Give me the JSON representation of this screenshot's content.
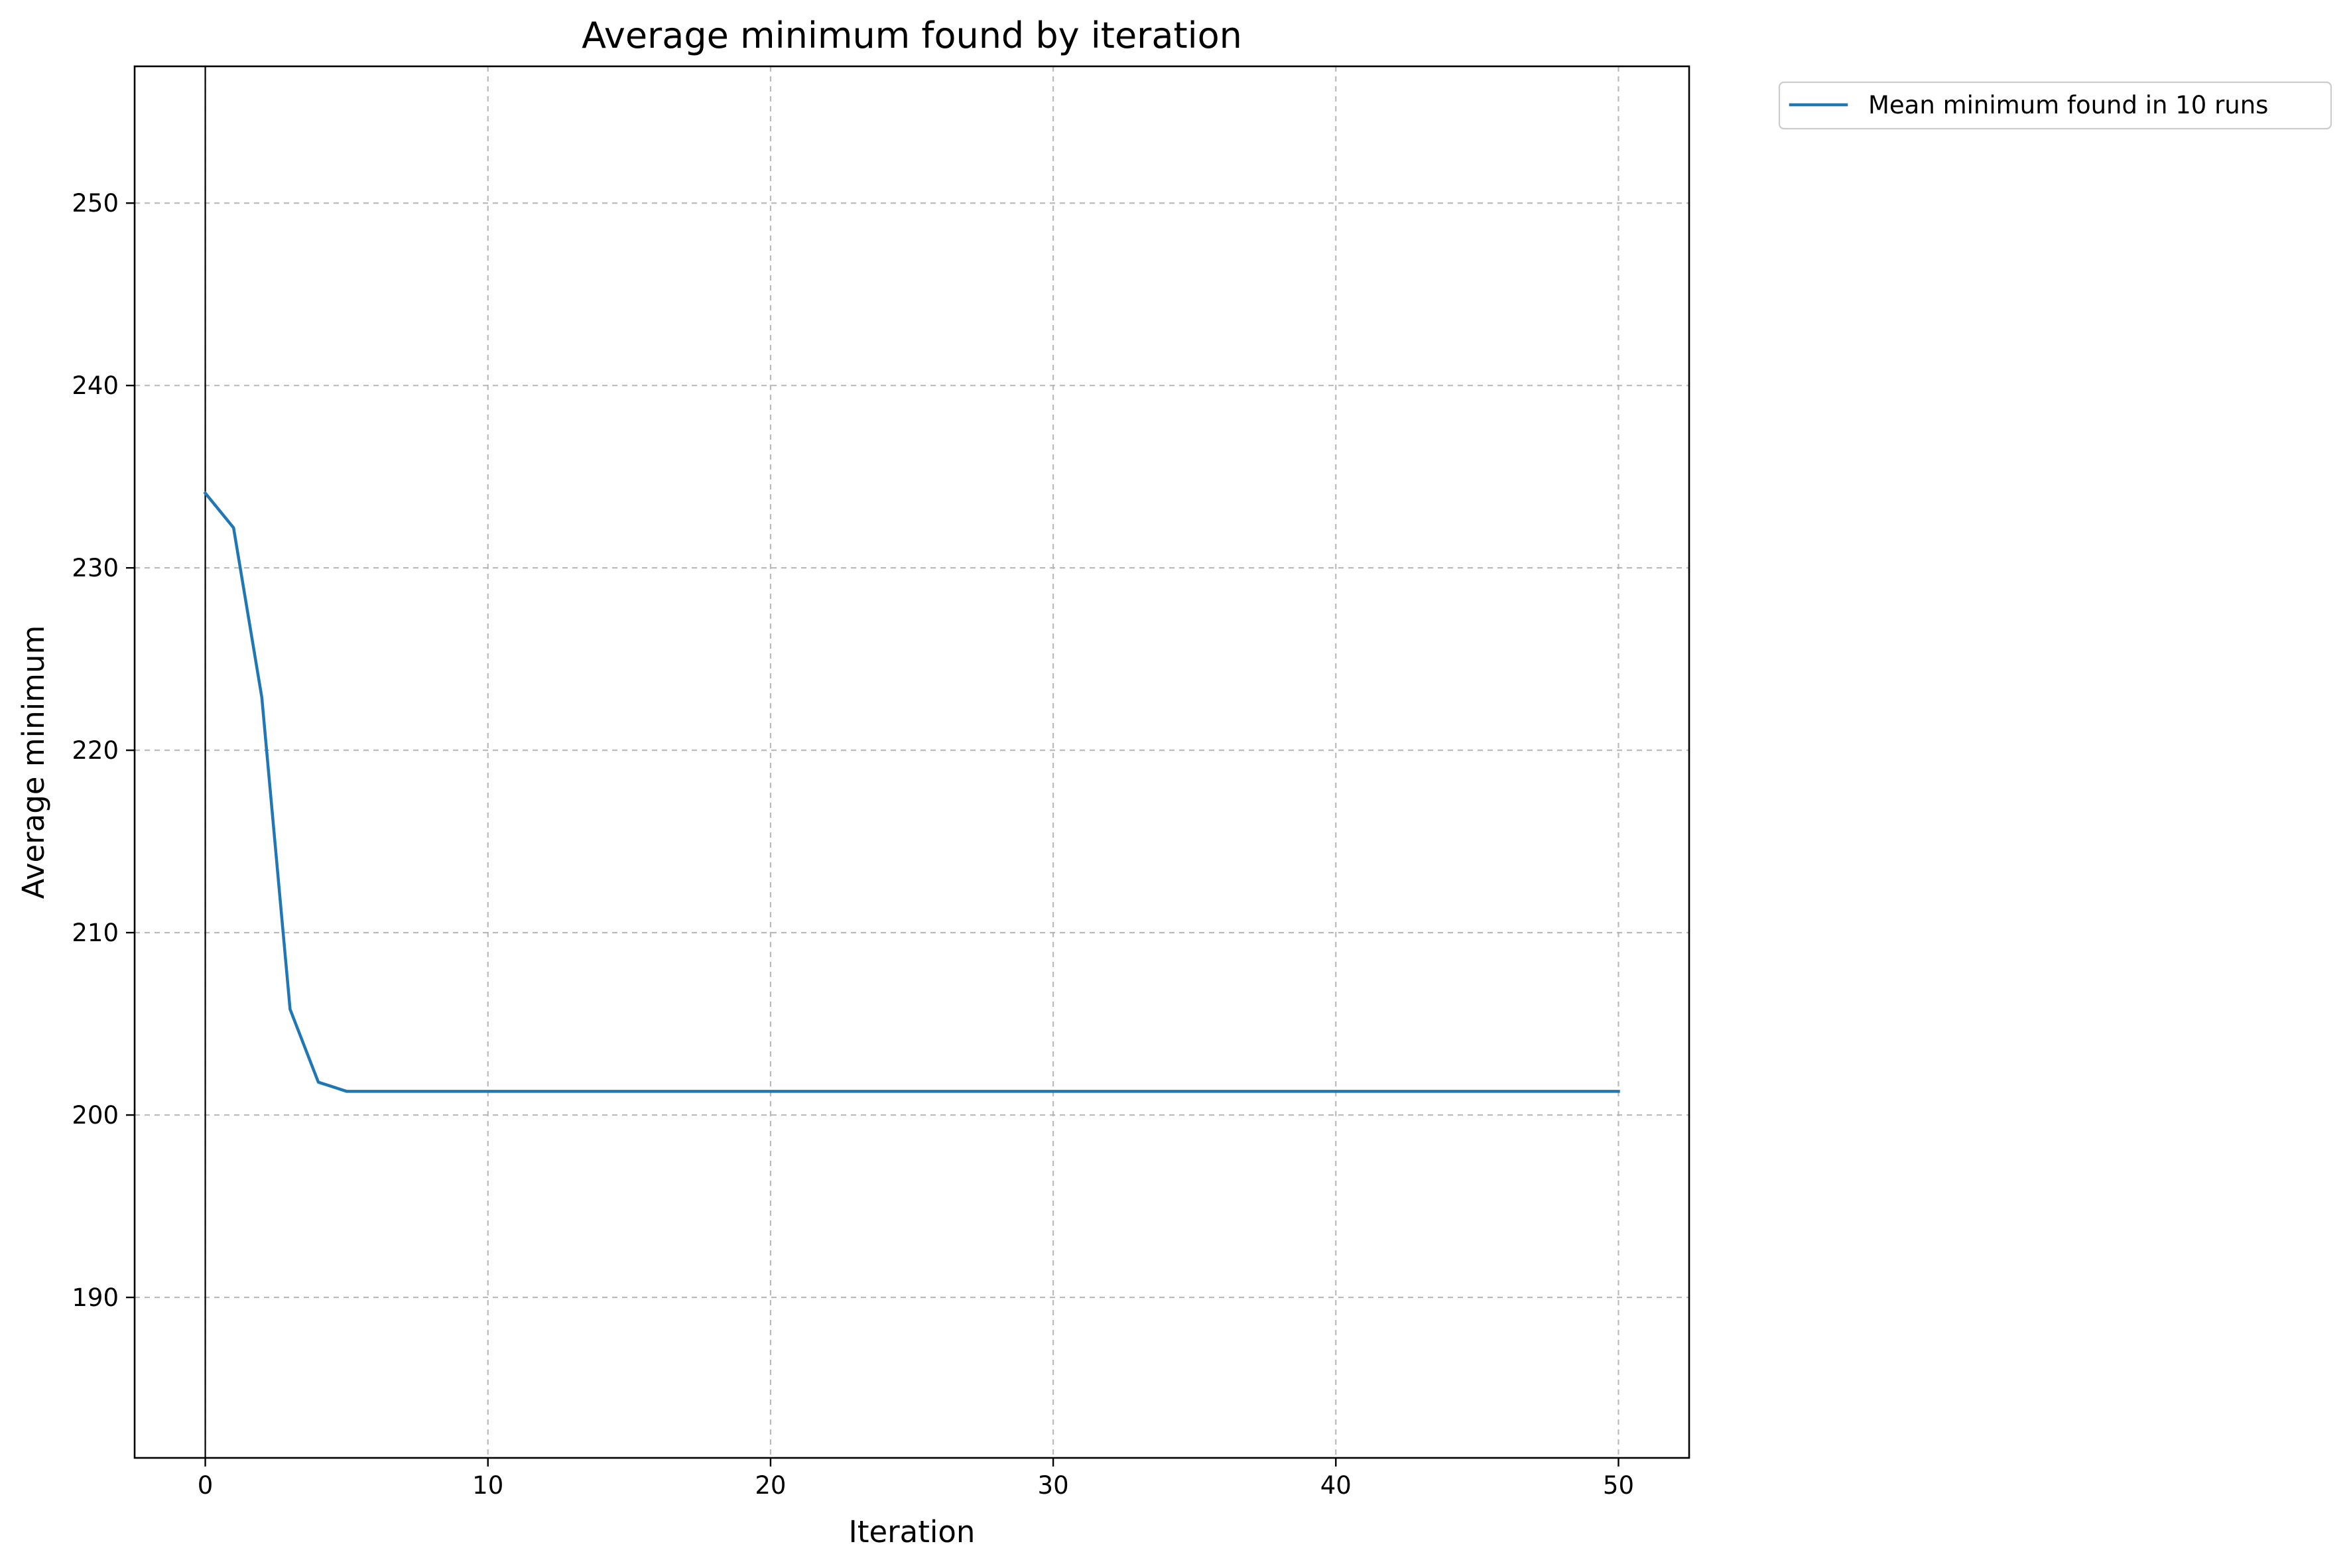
{
  "chart_data": {
    "type": "line",
    "title": "Average minimum found by iteration",
    "xlabel": "Iteration",
    "ylabel": "Average minimum",
    "xlim": [
      -2.5,
      52.5
    ],
    "ylim": [
      181.2,
      257.5
    ],
    "xticks": [
      0,
      10,
      20,
      30,
      40,
      50
    ],
    "yticks": [
      190,
      200,
      210,
      220,
      230,
      240,
      250
    ],
    "grid": true,
    "vertical_reference_line_x": 0,
    "legend_position": "outside-top-right",
    "series": [
      {
        "name": "Mean minimum found in 10 runs",
        "color": "#1f77b4",
        "x": [
          0,
          1,
          2,
          3,
          4,
          5,
          6,
          7,
          8,
          9,
          10,
          11,
          12,
          13,
          14,
          15,
          16,
          17,
          18,
          19,
          20,
          21,
          22,
          23,
          24,
          25,
          26,
          27,
          28,
          29,
          30,
          31,
          32,
          33,
          34,
          35,
          36,
          37,
          38,
          39,
          40,
          41,
          42,
          43,
          44,
          45,
          46,
          47,
          48,
          49,
          50
        ],
        "values": [
          234.1,
          232.2,
          222.9,
          205.8,
          201.8,
          201.3,
          201.3,
          201.3,
          201.3,
          201.3,
          201.3,
          201.3,
          201.3,
          201.3,
          201.3,
          201.3,
          201.3,
          201.3,
          201.3,
          201.3,
          201.3,
          201.3,
          201.3,
          201.3,
          201.3,
          201.3,
          201.3,
          201.3,
          201.3,
          201.3,
          201.3,
          201.3,
          201.3,
          201.3,
          201.3,
          201.3,
          201.3,
          201.3,
          201.3,
          201.3,
          201.3,
          201.3,
          201.3,
          201.3,
          201.3,
          201.3,
          201.3,
          201.3,
          201.3,
          201.3,
          201.3
        ]
      }
    ]
  }
}
